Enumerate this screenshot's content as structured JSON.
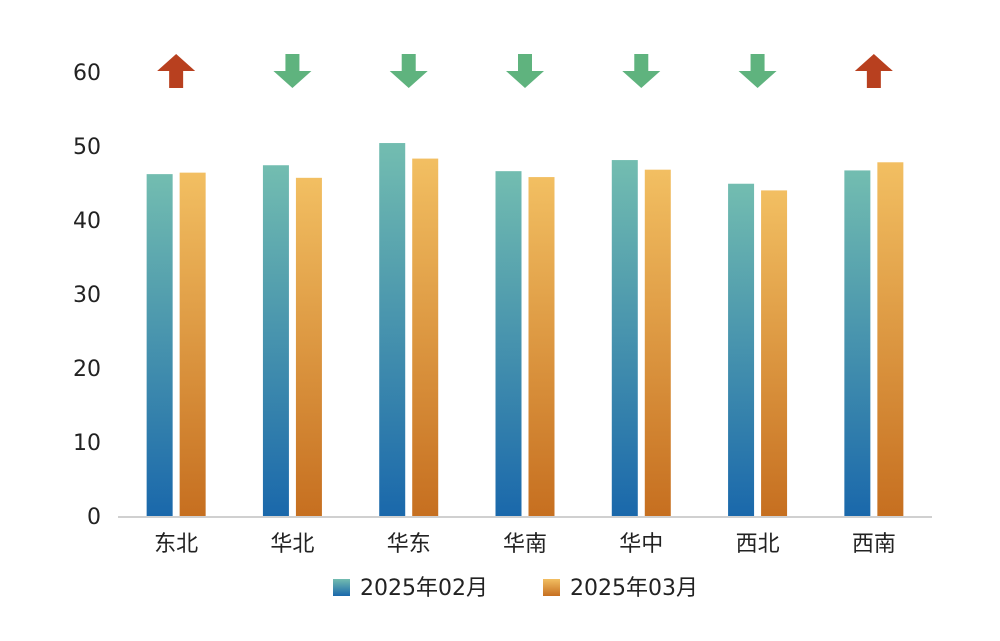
{
  "chart_data": {
    "type": "bar",
    "title": "",
    "xlabel": "",
    "ylabel": "",
    "ylim": [
      0,
      60
    ],
    "yticks": [
      0,
      10,
      20,
      30,
      40,
      50,
      60
    ],
    "categories": [
      "东北",
      "华北",
      "华东",
      "华南",
      "华中",
      "西北",
      "西南"
    ],
    "series": [
      {
        "name": "2025年02月",
        "values": [
          46.2,
          47.4,
          50.4,
          46.6,
          48.1,
          44.9,
          46.7
        ]
      },
      {
        "name": "2025年03月",
        "values": [
          46.4,
          45.7,
          48.3,
          45.8,
          46.8,
          44.0,
          47.8
        ]
      }
    ],
    "trend_arrows": [
      "up",
      "down",
      "down",
      "down",
      "down",
      "down",
      "up"
    ],
    "grid": false,
    "legend_position": "bottom",
    "colors": {
      "series1_top": "#73bdb0",
      "series1_bottom": "#1a68ab",
      "series2_top": "#f2bf62",
      "series2_bottom": "#c66f20",
      "arrow_up": "#b8401f",
      "arrow_down": "#5fb37e",
      "axis": "#d0d0d0"
    }
  }
}
